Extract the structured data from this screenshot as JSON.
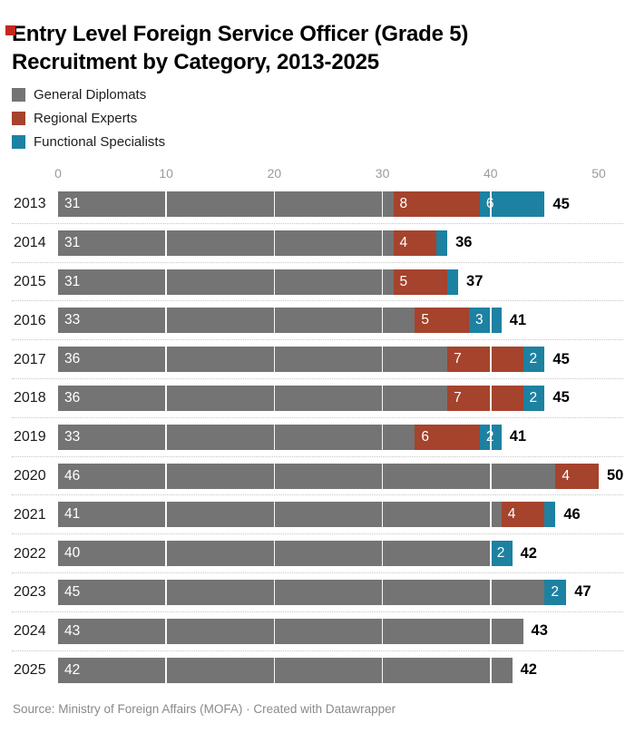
{
  "corner_marker_color": "#c5281c",
  "title_lines": [
    "Entry Level Foreign Service Officer (Grade 5)",
    "Recruitment by Category, 2013-2025"
  ],
  "legend": {
    "items": [
      {
        "label": "General Diplomats",
        "color": "#747474"
      },
      {
        "label": "Regional Experts",
        "color": "#a5432d"
      },
      {
        "label": "Functional Specialists",
        "color": "#1d81a2"
      }
    ]
  },
  "chart_data": {
    "type": "bar",
    "orientation": "horizontal",
    "stacked": true,
    "title": "Entry Level Foreign Service Officer (Grade 5) Recruitment by Category, 2013-2025",
    "categories": [
      "2013",
      "2014",
      "2015",
      "2016",
      "2017",
      "2018",
      "2019",
      "2020",
      "2021",
      "2022",
      "2023",
      "2024",
      "2025"
    ],
    "series": [
      {
        "name": "General Diplomats",
        "color": "#747474",
        "values": [
          31,
          31,
          31,
          33,
          36,
          36,
          33,
          46,
          41,
          40,
          45,
          43,
          42
        ]
      },
      {
        "name": "Regional Experts",
        "color": "#a5432d",
        "values": [
          8,
          4,
          5,
          5,
          7,
          7,
          6,
          4,
          4,
          0,
          0,
          0,
          0
        ]
      },
      {
        "name": "Functional Specialists",
        "color": "#1d81a2",
        "values": [
          6,
          1,
          1,
          3,
          2,
          2,
          2,
          0,
          1,
          2,
          2,
          0,
          0
        ]
      }
    ],
    "totals": [
      45,
      36,
      37,
      41,
      45,
      45,
      41,
      50,
      46,
      42,
      47,
      43,
      42
    ],
    "xlim": [
      0,
      50
    ],
    "ticks": [
      "0",
      "10",
      "20",
      "30",
      "40",
      "50"
    ],
    "tick_values": [
      0,
      10,
      20,
      30,
      40,
      50
    ],
    "gridlines": [
      10,
      20,
      30,
      40
    ],
    "label_min_value": 2,
    "legend_position": "top-left",
    "xlabel": "",
    "ylabel": ""
  },
  "footer": {
    "text": "Source: Ministry of Foreign Affairs (MOFA) · Created with Datawrapper"
  }
}
